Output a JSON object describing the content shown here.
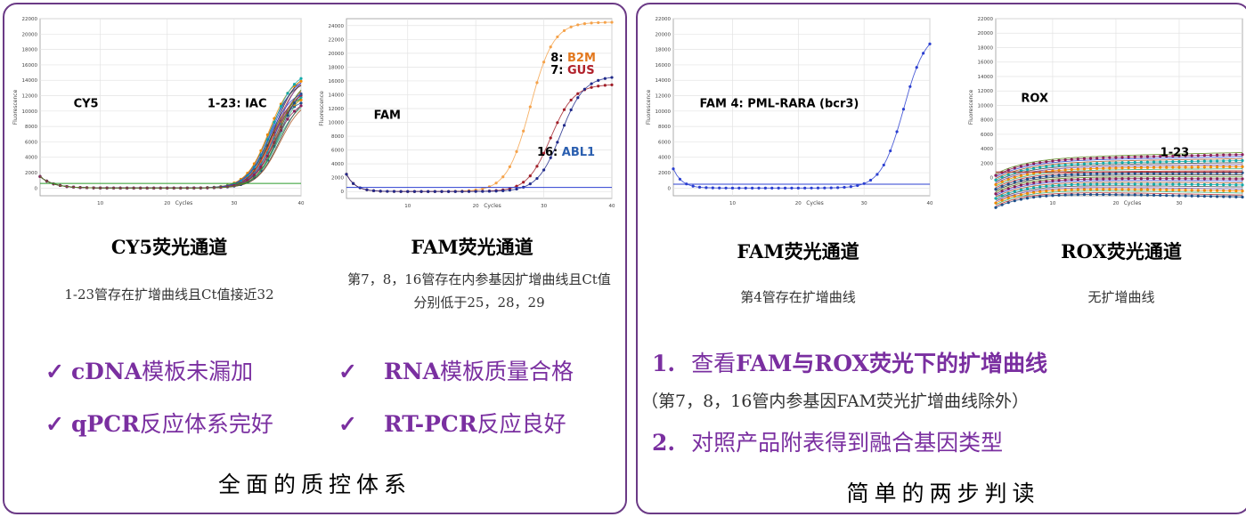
{
  "left_panel": {
    "footer": "全面的质控体系",
    "charts": [
      {
        "title": "CY5荧光通道",
        "desc": "1-23管存在扩增曲线且Ct值接近32"
      },
      {
        "title": "FAM荧光通道",
        "desc": "第7，8，16管存在内参基因扩增曲线且Ct值分别低于25，28，29"
      }
    ],
    "checks": [
      {
        "mark": "✓",
        "bold": "cDNA",
        "normal": "模板未漏加"
      },
      {
        "mark": "✓",
        "bold": "RNA",
        "normal": "模板质量合格"
      },
      {
        "mark": "✓",
        "bold": "qPCR",
        "normal": "反应体系完好"
      },
      {
        "mark": "✓",
        "bold": "RT-PCR",
        "normal": "反应良好"
      }
    ]
  },
  "right_panel": {
    "footer": "简单的两步判读",
    "charts": [
      {
        "title": "FAM荧光通道",
        "desc": "第4管存在扩增曲线"
      },
      {
        "title": "ROX荧光通道",
        "desc": "无扩增曲线"
      }
    ],
    "steps": [
      {
        "num": "1.",
        "bold_a": "查看",
        "text": "FAM与ROX荧光下的扩增曲线"
      },
      {
        "num": "2.",
        "bold_a": "对照",
        "text": "产品附表得到融合基因类型"
      }
    ],
    "step_note": "（第7，8，16管内参基因FAM荧光扩增曲线除外）"
  },
  "chart_data": [
    {
      "type": "line",
      "xlabel": "Cycles",
      "ylabel": "Fluorescence",
      "xlim": [
        1,
        40
      ],
      "ylim": [
        -1000,
        22000
      ],
      "x_ticks": [
        10,
        20,
        30,
        40
      ],
      "y_ticks": [
        0,
        2000,
        4000,
        6000,
        8000,
        10000,
        12000,
        14000,
        16000,
        18000,
        20000,
        22000
      ],
      "threshold": 600,
      "threshold_color": "#2a9a2a",
      "annotations": [
        {
          "text": "CY5",
          "x": 6,
          "y": 10500,
          "color": "#000000"
        },
        {
          "text": "1-23: IAC",
          "x": 26,
          "y": 10500,
          "color": "#000000"
        }
      ],
      "series_family": {
        "count": 23,
        "ct_approx": 32,
        "plateau": 13500
      },
      "grid": true
    },
    {
      "type": "line",
      "xlabel": "Cycles",
      "ylabel": "Fluorescence",
      "xlim": [
        1,
        40
      ],
      "ylim": [
        -1000,
        25000
      ],
      "x_ticks": [
        10,
        20,
        30,
        40
      ],
      "y_ticks": [
        0,
        2000,
        4000,
        6000,
        8000,
        10000,
        12000,
        14000,
        16000,
        18000,
        20000,
        22000,
        24000
      ],
      "threshold": 600,
      "threshold_color": "#2b3fd0",
      "annotations": [
        {
          "text": "FAM",
          "x": 5,
          "y": 10500,
          "color": "#000000"
        },
        {
          "parts": [
            {
              "t": "8: ",
              "c": "#000000"
            },
            {
              "t": "B2M",
              "c": "#e2781e"
            }
          ],
          "x": 31,
          "y": 18800
        },
        {
          "parts": [
            {
              "t": "7: ",
              "c": "#000000"
            },
            {
              "t": "GUS",
              "c": "#b0202a"
            }
          ],
          "x": 31,
          "y": 17000
        },
        {
          "parts": [
            {
              "t": "16: ",
              "c": "#000000"
            },
            {
              "t": "ABL1",
              "c": "#2b5fb0"
            }
          ],
          "x": 29,
          "y": 5200
        }
      ],
      "series": [
        {
          "name": "B2M",
          "ct": 24,
          "plateau": 24500,
          "color": "#f5a24a"
        },
        {
          "name": "GUS",
          "ct": 27,
          "plateau": 15500,
          "color": "#a01e28"
        },
        {
          "name": "ABL1",
          "ct": 28.5,
          "plateau": 16700,
          "color": "#202a8a"
        }
      ],
      "grid": true
    },
    {
      "type": "line",
      "xlabel": "Cycles",
      "ylabel": "Fluorescence",
      "xlim": [
        1,
        40
      ],
      "ylim": [
        -1000,
        22000
      ],
      "x_ticks": [
        10,
        20,
        30,
        40
      ],
      "y_ticks": [
        0,
        2000,
        4000,
        6000,
        8000,
        10000,
        12000,
        14000,
        16000,
        18000,
        20000,
        22000
      ],
      "threshold": 500,
      "threshold_color": "#2b3fd0",
      "annotations": [
        {
          "text": "FAM   4: PML-RARA (bcr3)",
          "x": 5,
          "y": 10500,
          "color": "#000000"
        }
      ],
      "series": [
        {
          "name": "PML-RARA",
          "ct": 32,
          "plateau": 20500,
          "color": "#2b3fd0"
        }
      ],
      "grid": true
    },
    {
      "type": "line",
      "xlabel": "Cycles",
      "ylabel": "Fluorescence",
      "xlim": [
        1,
        40
      ],
      "ylim": [
        -2500,
        22000
      ],
      "x_ticks": [
        10,
        20,
        30
      ],
      "y_ticks": [
        0,
        2000,
        4000,
        6000,
        8000,
        10000,
        12000,
        14000,
        16000,
        18000,
        20000,
        22000
      ],
      "threshold": 800,
      "threshold_color": "#b02a2a",
      "annotations": [
        {
          "text": "ROX",
          "x": 5,
          "y": 10500,
          "color": "#000000"
        },
        {
          "text": "1-23",
          "x": 27,
          "y": 3000,
          "color": "#000000"
        }
      ],
      "series_family": {
        "count": 23,
        "flat": true
      },
      "grid": true
    }
  ]
}
